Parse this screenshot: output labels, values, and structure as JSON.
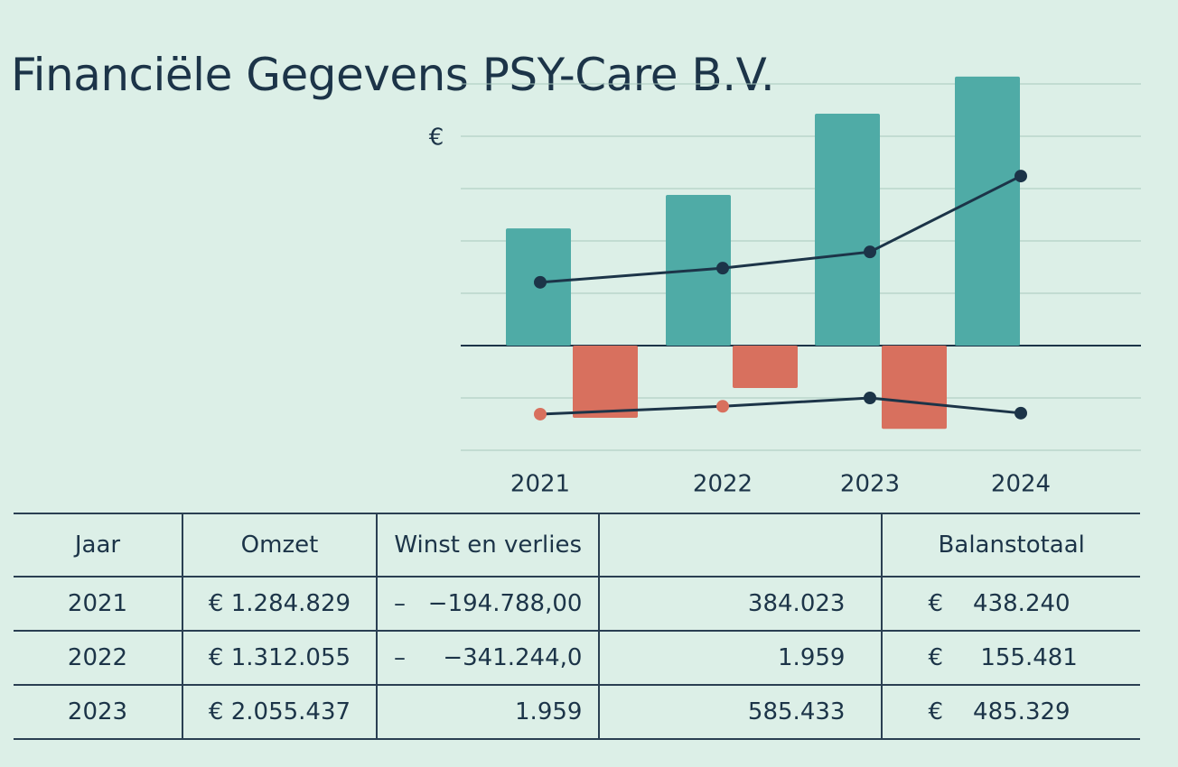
{
  "title": "Financiële Gegevens PSY-Care B.V.",
  "chart_data": {
    "type": "bar",
    "y_label": "€",
    "categories": [
      "2021",
      "2022",
      "2023",
      "2024"
    ],
    "ylim": [
      -2,
      5.2
    ],
    "yticks": [
      -2,
      -1,
      0,
      1,
      2,
      3,
      4,
      5
    ],
    "grid": true,
    "series": [
      {
        "type": "bar",
        "color": "#4faba6",
        "values": [
          2.24,
          2.88,
          4.43,
          5.14
        ]
      },
      {
        "type": "bar",
        "color": "#d8705e",
        "values": [
          -1.38,
          -0.81,
          -1.59,
          null
        ]
      },
      {
        "type": "line",
        "color": "#1c3448",
        "values": [
          1.21,
          1.48,
          1.79,
          3.24
        ]
      },
      {
        "type": "line",
        "color": "#1c3448",
        "values": [
          -1.31,
          -1.16,
          -1.0,
          -1.29
        ],
        "marker_colors": [
          "#d8705e",
          "#d8705e",
          "#1c3448",
          "#1c3448"
        ]
      }
    ]
  },
  "table": {
    "header": [
      "Jaar",
      "Omzet",
      "Winst en verlies",
      null,
      "Balanstotaal"
    ],
    "rows": [
      [
        "2021",
        "€ 1.284.829",
        "–   −194.788,00",
        "384.023",
        "€    438.240"
      ],
      [
        "2022",
        "€ 1.312.055",
        "–     −341.244,0",
        "1.959",
        "€     155.481"
      ],
      [
        "2023",
        "€ 2.055.437",
        "1.959",
        "585.433",
        "€    485.329"
      ]
    ]
  }
}
